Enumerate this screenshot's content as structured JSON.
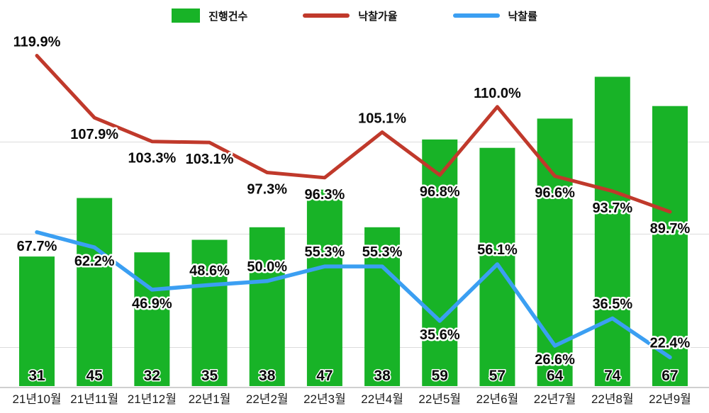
{
  "legend": {
    "bars_label": "진행건수",
    "price_rate_label": "낙찰가율",
    "sale_rate_label": "낙찰률"
  },
  "colors": {
    "bar": "#18b327",
    "price_rate_line": "#c0392b",
    "sale_rate_line": "#3b9ff2",
    "grid": "#dcdcdc",
    "axis": "#cfcfcf",
    "label_text": "#0a0a0a"
  },
  "chart_data": {
    "type": "bar",
    "subtype": "combo-bar-line",
    "categories": [
      "21년10월",
      "21년11월",
      "21년12월",
      "22년1월",
      "22년2월",
      "22년3월",
      "22년4월",
      "22년5월",
      "22년6월",
      "22년7월",
      "22년8월",
      "22년9월"
    ],
    "series": [
      {
        "name": "진행건수",
        "type": "bar",
        "color": "#18b327",
        "values": [
          31,
          45,
          32,
          35,
          38,
          47,
          38,
          59,
          57,
          64,
          74,
          67
        ]
      },
      {
        "name": "낙찰가율",
        "type": "line",
        "unit": "%",
        "color": "#c0392b",
        "values": [
          119.9,
          107.9,
          103.3,
          103.1,
          97.3,
          96.3,
          105.1,
          96.8,
          110.0,
          96.6,
          93.7,
          89.7
        ]
      },
      {
        "name": "낙찰률",
        "type": "line",
        "unit": "%",
        "color": "#3b9ff2",
        "values": [
          67.7,
          62.2,
          46.9,
          48.6,
          50.0,
          55.3,
          55.3,
          35.6,
          56.1,
          26.6,
          36.5,
          22.4
        ]
      }
    ],
    "title": "",
    "xlabel": "",
    "ylabel": "",
    "legend_position": "top",
    "grid": "horizontal",
    "data_labels": "all points labeled"
  }
}
